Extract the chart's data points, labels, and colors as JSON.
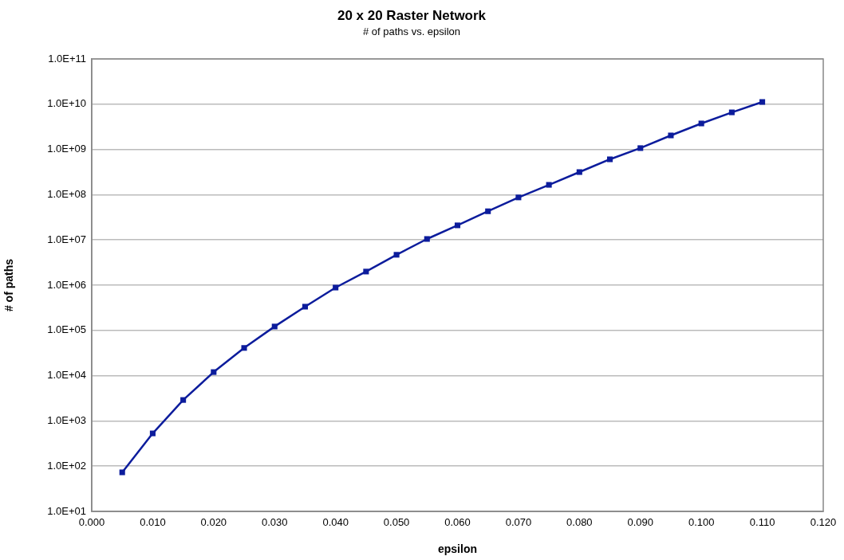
{
  "chart_data": {
    "type": "line",
    "title": "20 x 20 Raster Network",
    "subtitle": "# of paths vs. epsilon",
    "xlabel": "epsilon",
    "ylabel": "# of paths",
    "x": [
      0.005,
      0.01,
      0.015,
      0.02,
      0.025,
      0.03,
      0.035,
      0.04,
      0.045,
      0.05,
      0.055,
      0.06,
      0.065,
      0.07,
      0.075,
      0.08,
      0.085,
      0.09,
      0.095,
      0.1,
      0.105,
      0.11
    ],
    "series": [
      {
        "color": "#0c1c9c",
        "values": [
          73,
          530,
          2900,
          12000,
          41000,
          122000,
          335000,
          885000,
          2000000,
          4700000,
          10500000,
          21000000,
          43000000,
          87000000,
          165000000,
          316000000,
          605000000,
          1070000000,
          2040000000,
          3750000000,
          6600000000,
          11200000000
        ]
      }
    ],
    "log": "y",
    "grid": "y",
    "marker": "square",
    "line_style": "solid",
    "legend": false,
    "xlim": [
      0,
      0.12
    ],
    "xticks": [
      {
        "value": 0,
        "label": "0.000"
      },
      {
        "value": 0.01,
        "label": "0.010"
      },
      {
        "value": 0.02,
        "label": "0.020"
      },
      {
        "value": 0.03,
        "label": "0.030"
      },
      {
        "value": 0.04,
        "label": "0.040"
      },
      {
        "value": 0.05,
        "label": "0.050"
      },
      {
        "value": 0.06,
        "label": "0.060"
      },
      {
        "value": 0.07,
        "label": "0.070"
      },
      {
        "value": 0.08,
        "label": "0.080"
      },
      {
        "value": 0.09,
        "label": "0.090"
      },
      {
        "value": 0.1,
        "label": "0.100"
      },
      {
        "value": 0.11,
        "label": "0.110"
      },
      {
        "value": 0.12,
        "label": "0.120"
      }
    ],
    "ylim": [
      10,
      100000000000
    ],
    "yticks": [
      {
        "value": 10,
        "label": "1.0E+01"
      },
      {
        "value": 100,
        "label": "1.0E+02"
      },
      {
        "value": 1000,
        "label": "1.0E+03"
      },
      {
        "value": 10000,
        "label": "1.0E+04"
      },
      {
        "value": 100000,
        "label": "1.0E+05"
      },
      {
        "value": 1000000,
        "label": "1.0E+06"
      },
      {
        "value": 10000000,
        "label": "1.0E+07"
      },
      {
        "value": 100000000,
        "label": "1.0E+08"
      },
      {
        "value": 1000000000,
        "label": "1.0E+09"
      },
      {
        "value": 10000000000,
        "label": "1.0E+10"
      },
      {
        "value": 100000000000,
        "label": "1.0E+11"
      }
    ]
  }
}
